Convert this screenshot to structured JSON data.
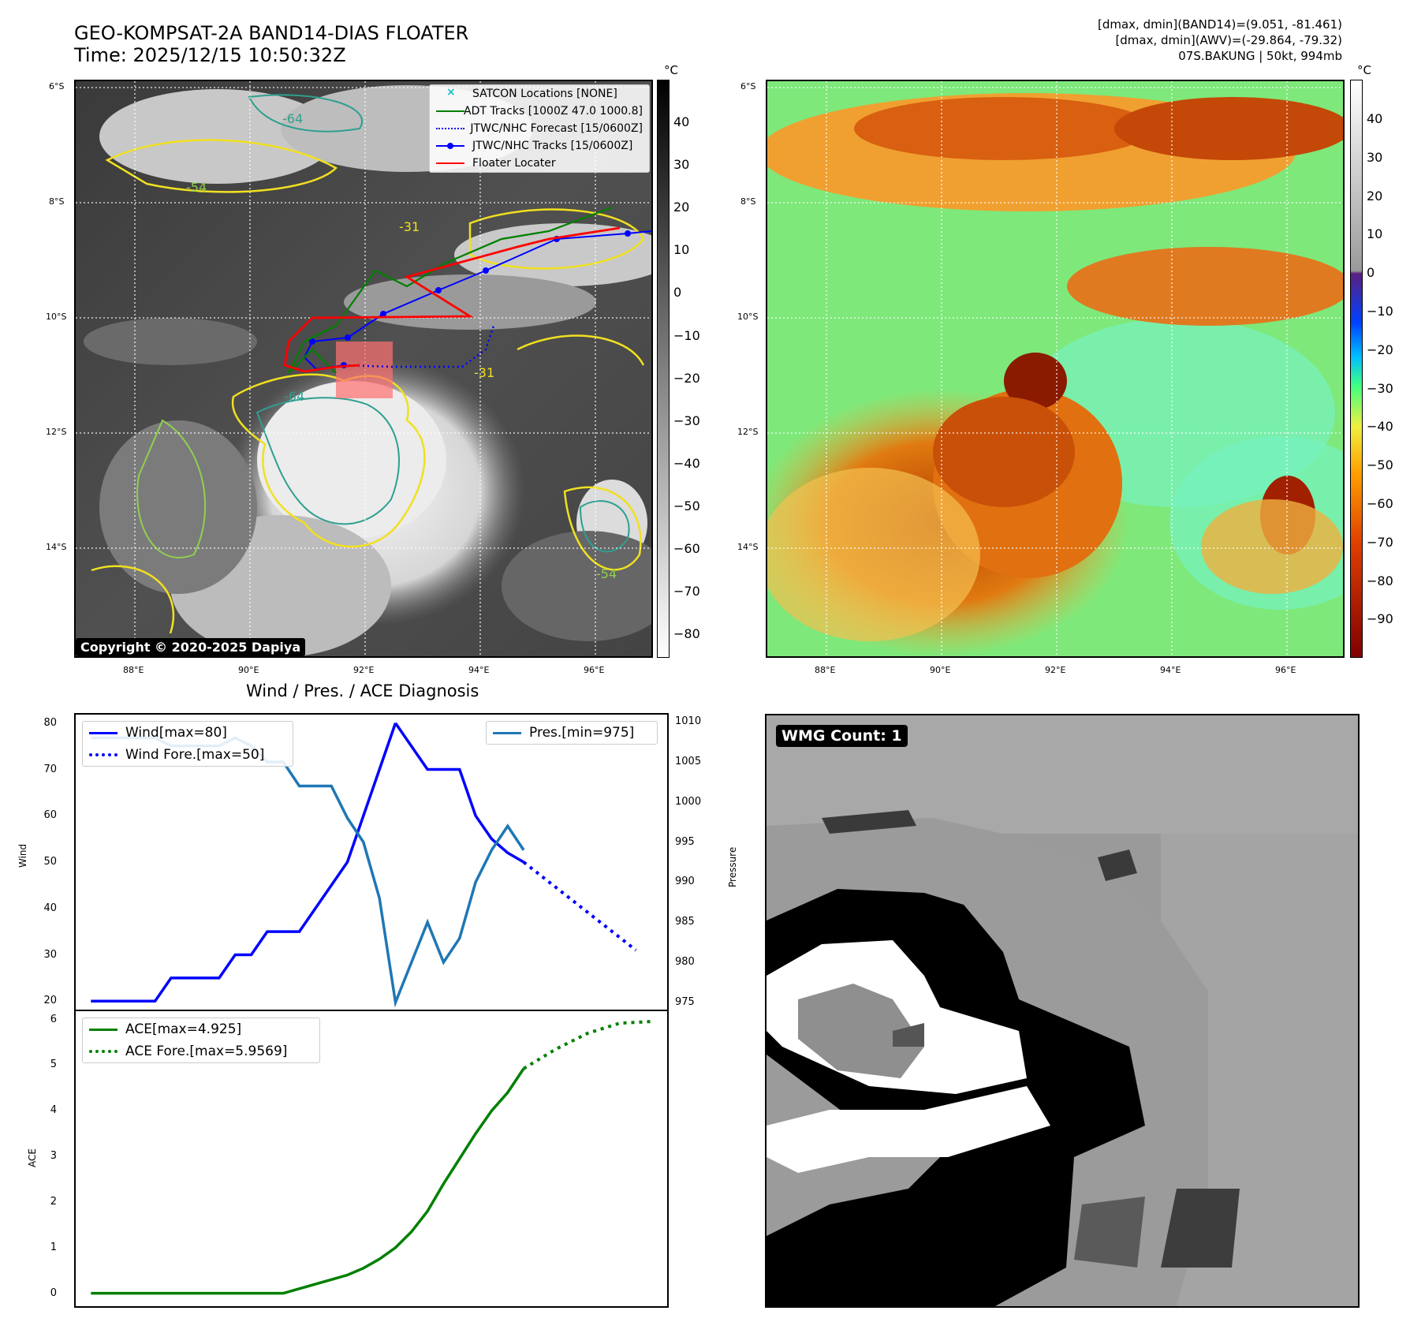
{
  "header": {
    "title_line1": "GEO-KOMPSAT-2A BAND14-DIAS FLOATER",
    "title_line2": "Time: 2025/12/15 10:50:32Z",
    "info_line1": "[dmax, dmin](BAND14)=(9.051, -81.461)",
    "info_line2": "[dmax, dmin](AWV)=(-29.864, -79.32)",
    "info_line3": "07S.BAKUNG | 50kt, 994mb"
  },
  "map": {
    "lat_labels": [
      "6°S",
      "8°S",
      "10°S",
      "12°S",
      "14°S"
    ],
    "lon_labels": [
      "88°E",
      "90°E",
      "92°E",
      "94°E",
      "96°E"
    ],
    "contour_labels": [
      "-64",
      "-54",
      "-31"
    ],
    "copyright": "Copyright © 2020-2025 Dapiya",
    "legend": [
      {
        "label": "SATCON Locations [NONE]",
        "color": "#17becf"
      },
      {
        "label": "ADT Tracks [1000Z 47.0 1000.8]",
        "color": "#008000"
      },
      {
        "label": "JTWC/NHC Forecast [15/0600Z]",
        "color": "#0000ff"
      },
      {
        "label": "JTWC/NHC Tracks [15/0600Z]",
        "color": "#0000ff"
      },
      {
        "label": "Floater Locater",
        "color": "#ff0000"
      }
    ],
    "colorbar1": {
      "unit": "°C",
      "ticks": [
        "40",
        "30",
        "20",
        "10",
        "0",
        "−10",
        "−20",
        "−30",
        "−40",
        "−50",
        "−60",
        "−70",
        "−80"
      ]
    },
    "colorbar2": {
      "unit": "°C",
      "ticks": [
        "40",
        "30",
        "20",
        "10",
        "0",
        "−10",
        "−20",
        "−30",
        "−40",
        "−50",
        "−60",
        "−70",
        "−80",
        "−90"
      ]
    }
  },
  "diagnosis": {
    "title": "Wind / Pres. / ACE Diagnosis",
    "wind_axis_label": "Wind",
    "pres_axis_label": "Pressure",
    "ace_axis_label": "ACE",
    "wind_ticks": [
      "80",
      "70",
      "60",
      "50",
      "40",
      "30",
      "20"
    ],
    "pres_ticks": [
      "1010",
      "1005",
      "1000",
      "995",
      "990",
      "985",
      "980",
      "975"
    ],
    "ace_ticks": [
      "6",
      "5",
      "4",
      "3",
      "2",
      "1",
      "0"
    ],
    "legend_wind": "Wind[max=80]",
    "legend_wind_fore": "Wind Fore.[max=50]",
    "legend_pres": "Pres.[min=975]",
    "legend_ace": "ACE[max=4.925]",
    "legend_ace_fore": "ACE Fore.[max=5.9569]"
  },
  "wmg": {
    "label": "WMG Count: 1"
  },
  "chart_data": [
    {
      "type": "line",
      "title": "Wind / Pres. / ACE Diagnosis",
      "ylabel": "Wind",
      "ylim": [
        18,
        82
      ],
      "series": [
        {
          "name": "Wind[max=80]",
          "color": "#0000ff",
          "style": "solid",
          "x": [
            0,
            1,
            2,
            3,
            4,
            5,
            6,
            7,
            8,
            9,
            10,
            11,
            12,
            13,
            14,
            15,
            16,
            17,
            18,
            19
          ],
          "values": [
            20,
            20,
            20,
            20,
            20,
            25,
            25,
            25,
            25,
            30,
            30,
            35,
            35,
            35,
            40,
            45,
            50,
            60,
            70,
            80
          ]
        },
        {
          "name": "Wind Fore.[max=50]",
          "color": "#0000ff",
          "style": "dotted",
          "x": [
            27,
            34
          ],
          "values": [
            50,
            31
          ]
        }
      ],
      "wind_obs_tail": {
        "x": [
          19,
          20,
          21,
          22,
          23,
          24,
          25,
          26,
          27
        ],
        "values": [
          80,
          75,
          70,
          70,
          70,
          60,
          55,
          52,
          50
        ]
      }
    },
    {
      "type": "line",
      "ylabel": "Pressure",
      "ylim": [
        974,
        1011
      ],
      "series": [
        {
          "name": "Pres.[min=975]",
          "color": "#1f77b4",
          "style": "solid",
          "x": [
            0,
            1,
            2,
            3,
            4,
            5,
            6,
            7,
            8,
            9,
            10,
            11,
            12,
            13,
            14,
            15,
            16,
            17,
            18,
            19,
            20,
            21,
            22,
            23,
            24,
            25,
            26,
            27
          ],
          "values": [
            1008,
            1008,
            1008,
            1008,
            1008,
            1007,
            1007,
            1007,
            1007,
            1008,
            1007,
            1005,
            1005,
            1002,
            1002,
            1002,
            998,
            995,
            988,
            975,
            980,
            985,
            980,
            983,
            990,
            994,
            997,
            994
          ]
        }
      ]
    },
    {
      "type": "line",
      "ylabel": "ACE",
      "ylim": [
        -0.3,
        6.2
      ],
      "series": [
        {
          "name": "ACE[max=4.925]",
          "color": "#008000",
          "style": "solid",
          "x": [
            0,
            2,
            4,
            6,
            8,
            10,
            12,
            13,
            14,
            15,
            16,
            17,
            18,
            19,
            20,
            21,
            22,
            23,
            24,
            25,
            26,
            27
          ],
          "values": [
            0,
            0,
            0,
            0,
            0,
            0,
            0,
            0.1,
            0.2,
            0.3,
            0.4,
            0.55,
            0.75,
            1.0,
            1.35,
            1.8,
            2.4,
            2.95,
            3.5,
            4.0,
            4.4,
            4.925
          ]
        },
        {
          "name": "ACE Fore.[max=5.9569]",
          "color": "#008000",
          "style": "dotted",
          "x": [
            27,
            29,
            31,
            33,
            35
          ],
          "values": [
            4.925,
            5.35,
            5.7,
            5.92,
            5.9569
          ]
        }
      ]
    }
  ]
}
